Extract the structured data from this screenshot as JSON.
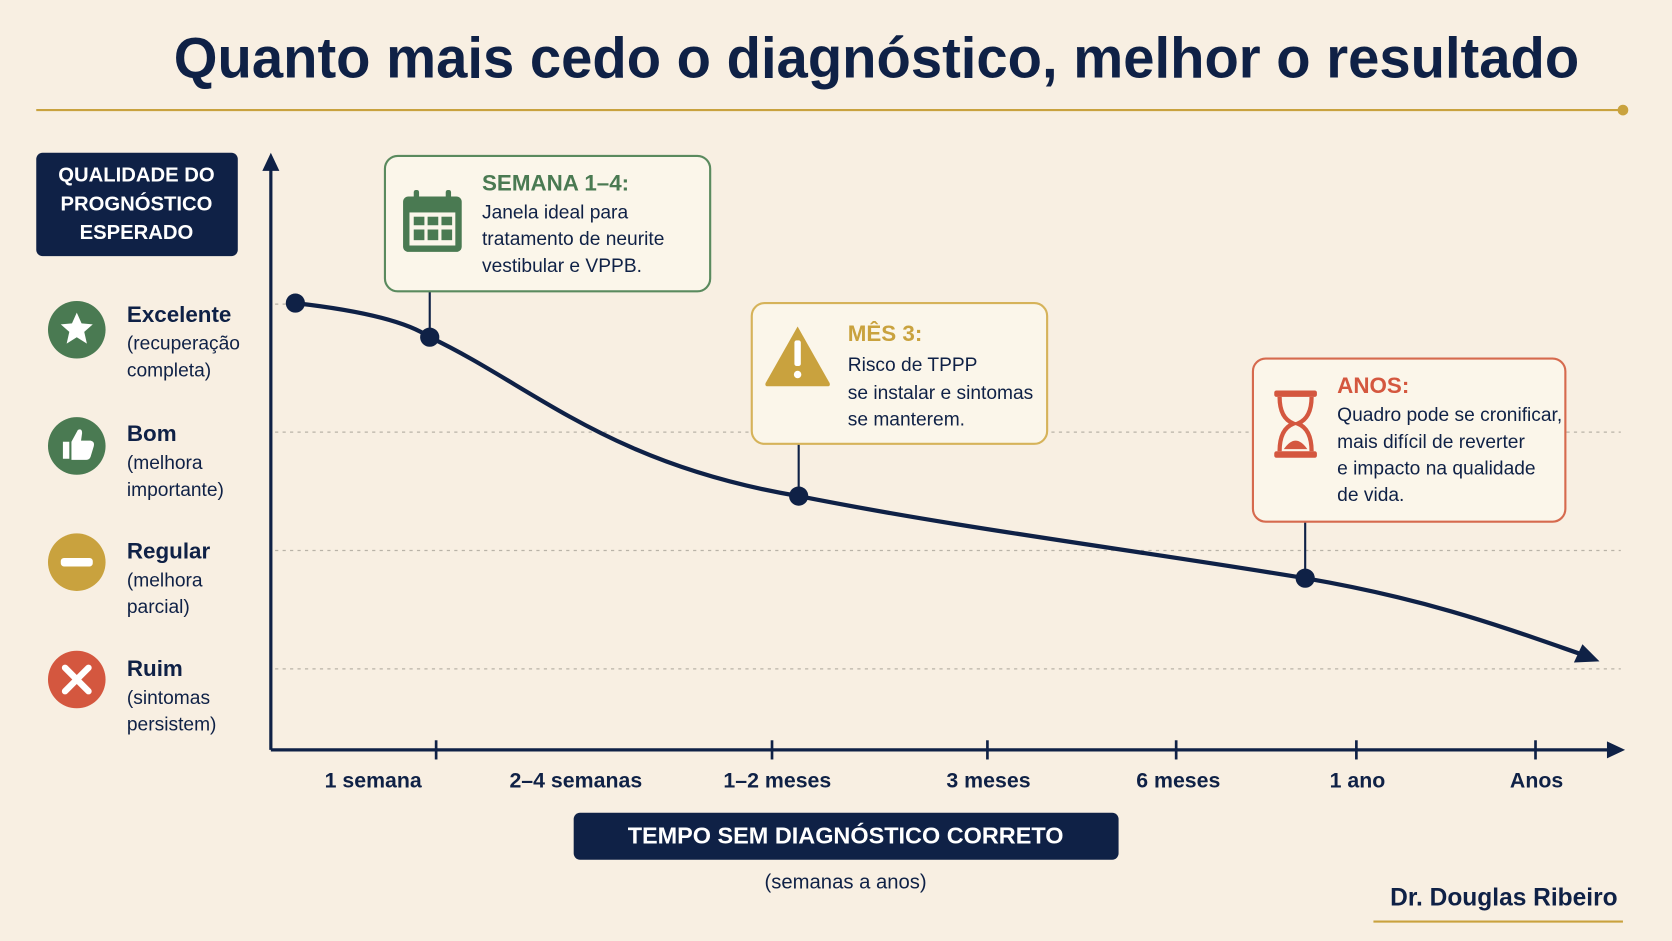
{
  "title": "Quanto mais cedo o diagnóstico, melhor o resultado",
  "y_axis_label": [
    "QUALIDADE DO",
    "PROGNÓSTICO",
    "ESPERADO"
  ],
  "levels": [
    {
      "label": "Excelente",
      "description": [
        "(recuperação",
        "completa)"
      ]
    },
    {
      "label": "Bom",
      "description": [
        "(melhora",
        "importante)"
      ]
    },
    {
      "label": "Regular",
      "description": [
        "(melhora",
        "parcial)"
      ]
    },
    {
      "label": "Ruim",
      "description": [
        "(sintomas",
        "persistem)"
      ]
    }
  ],
  "callouts": [
    {
      "heading": "SEMANA 1–4:",
      "lines": [
        "Janela ideal para",
        "tratamento de neurite",
        "vestibular e VPPB."
      ]
    },
    {
      "heading": "MÊS 3:",
      "lines": [
        "Risco de TPPP",
        "se instalar e sintomas",
        "se manterem."
      ]
    },
    {
      "heading": "ANOS:",
      "lines": [
        "Quadro pode se cronificar,",
        "mais difícil de reverter",
        "e impacto na qualidade",
        "de vida."
      ]
    }
  ],
  "x_categories": [
    "1 semana",
    "2–4 semanas",
    "1–2 meses",
    "3 meses",
    "6 meses",
    "1 ano",
    "Anos"
  ],
  "x_axis_title": "TEMPO SEM DIAGNÓSTICO CORRETO",
  "x_axis_subtitle": "(semanas a anos)",
  "author": "Dr. Douglas Ribeiro"
}
